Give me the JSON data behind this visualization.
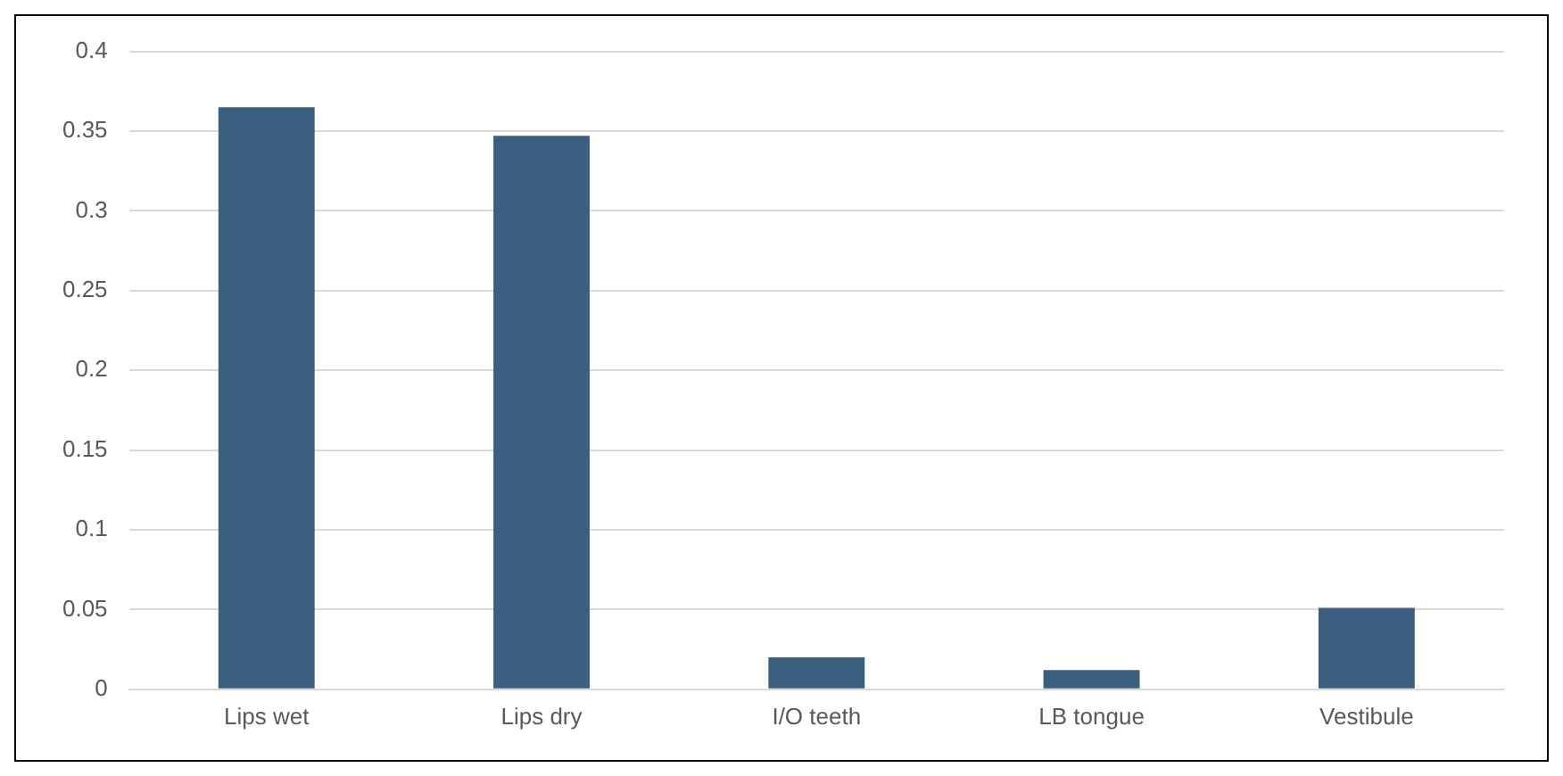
{
  "chart_data": {
    "type": "bar",
    "categories": [
      "Lips wet",
      "Lips dry",
      "I/O teeth",
      "LB tongue",
      "Vestibule"
    ],
    "values": [
      0.365,
      0.347,
      0.02,
      0.012,
      0.051
    ],
    "color": "#3a5f7f",
    "ylim": [
      0,
      0.4
    ],
    "yticks": [
      0,
      0.05,
      0.1,
      0.15,
      0.2,
      0.25,
      0.3,
      0.35,
      0.4
    ],
    "grid": "y"
  }
}
